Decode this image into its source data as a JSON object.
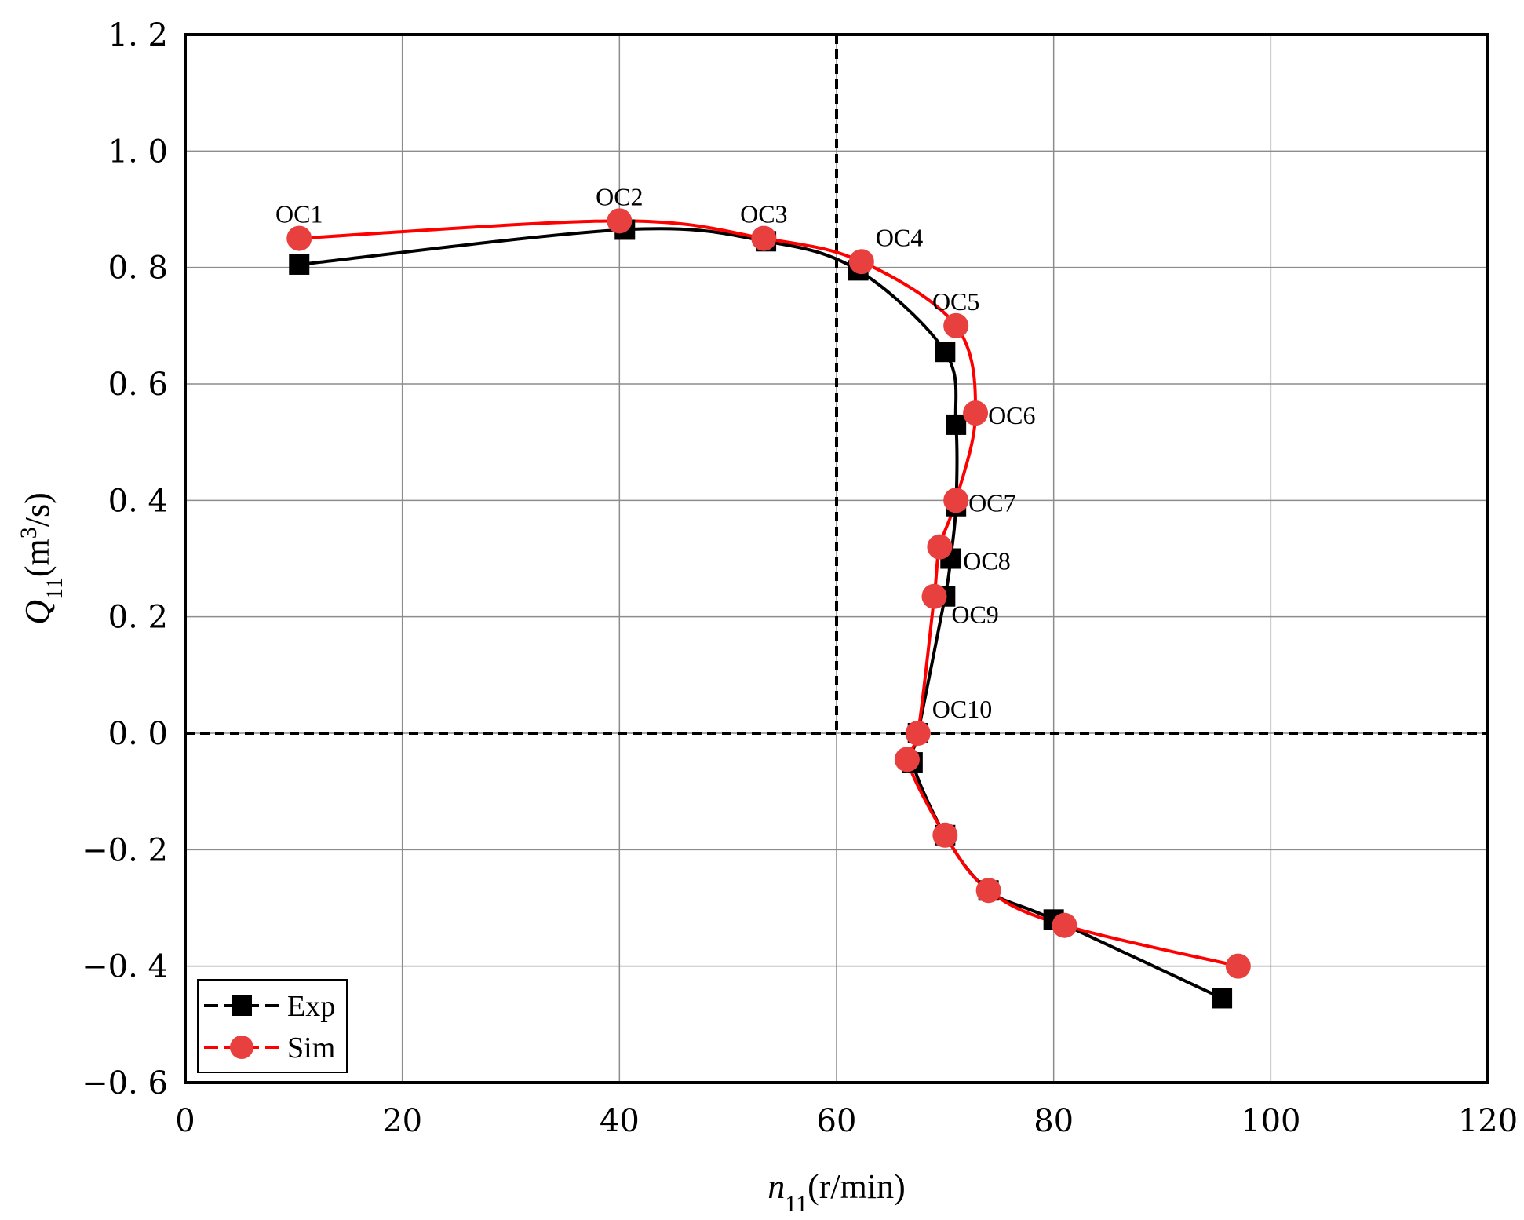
{
  "chart_data": {
    "type": "line",
    "xlabel": {
      "main": "n",
      "sub": "11",
      "unit": "(r/min)"
    },
    "ylabel": {
      "main": "Q",
      "sub": "11",
      "unit_pre": "(m",
      "sup": "3",
      "unit_post": "/s)"
    },
    "xlim": [
      0,
      120
    ],
    "ylim": [
      -0.6,
      1.2
    ],
    "xticks": [
      0,
      20,
      40,
      60,
      80,
      100,
      120
    ],
    "yticks": [
      -0.6,
      -0.4,
      -0.2,
      0.0,
      0.2,
      0.4,
      0.6,
      0.8,
      1.0,
      1.2
    ],
    "ytick_labels": [
      "−0. 6",
      "−0. 4",
      "−0. 2",
      "0. 0",
      "0. 2",
      "0. 4",
      "0. 6",
      "0. 8",
      "1. 0",
      "1. 2"
    ],
    "grid": true,
    "reference_lines": {
      "x": 60,
      "y": 0
    },
    "legend_position": "bottom-left",
    "series": [
      {
        "name": "Exp",
        "color": "#000000",
        "marker": "square",
        "x": [
          10.5,
          40.5,
          53.5,
          62.0,
          70.0,
          71.0,
          71.0,
          70.5,
          70.0,
          67.5,
          67.0,
          70.0,
          74.0,
          80.0,
          95.5
        ],
        "y": [
          0.805,
          0.865,
          0.845,
          0.795,
          0.655,
          0.53,
          0.39,
          0.3,
          0.235,
          0.0,
          -0.05,
          -0.175,
          -0.27,
          -0.32,
          -0.455
        ]
      },
      {
        "name": "Sim",
        "color": "#e8403f",
        "line_color": "#ff0000",
        "marker": "circle",
        "x": [
          10.5,
          40.0,
          53.3,
          62.3,
          71.0,
          72.8,
          71.0,
          69.5,
          69.0,
          67.5,
          66.5,
          70.0,
          74.0,
          81.0,
          97.0
        ],
        "y": [
          0.85,
          0.88,
          0.85,
          0.81,
          0.7,
          0.55,
          0.4,
          0.32,
          0.235,
          0.0,
          -0.045,
          -0.175,
          -0.27,
          -0.33,
          -0.4
        ]
      }
    ],
    "annotations": [
      {
        "text": "OC1",
        "x": 10.5,
        "y": 0.85,
        "pos": "above"
      },
      {
        "text": "OC2",
        "x": 40.0,
        "y": 0.88,
        "pos": "above"
      },
      {
        "text": "OC3",
        "x": 53.3,
        "y": 0.85,
        "pos": "above"
      },
      {
        "text": "OC4",
        "x": 62.3,
        "y": 0.81,
        "pos": "above-right"
      },
      {
        "text": "OC5",
        "x": 71.0,
        "y": 0.7,
        "pos": "above"
      },
      {
        "text": "OC6",
        "x": 72.8,
        "y": 0.55,
        "pos": "right"
      },
      {
        "text": "OC7",
        "x": 71.0,
        "y": 0.4,
        "pos": "right"
      },
      {
        "text": "OC8",
        "x": 70.5,
        "y": 0.3,
        "pos": "right"
      },
      {
        "text": "OC9",
        "x": 70.0,
        "y": 0.235,
        "pos": "below-right"
      },
      {
        "text": "OC10",
        "x": 67.5,
        "y": 0.0,
        "pos": "above-right"
      }
    ]
  }
}
